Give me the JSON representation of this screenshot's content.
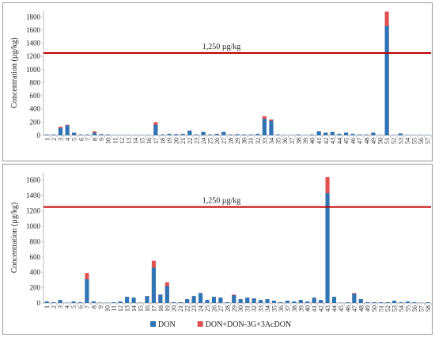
{
  "chart_data": [
    {
      "type": "bar",
      "y_label": "Concentration (µg/kg)",
      "categories": [
        "1",
        "2",
        "3",
        "4",
        "5",
        "6",
        "7",
        "8",
        "9",
        "10",
        "11",
        "12",
        "13",
        "14",
        "15",
        "16",
        "17",
        "18",
        "19",
        "20",
        "21",
        "22",
        "23",
        "24",
        "25",
        "26",
        "27",
        "28",
        "29",
        "30",
        "31",
        "32",
        "33",
        "34",
        "35",
        "36",
        "37",
        "38",
        "39",
        "40",
        "41",
        "42",
        "43",
        "44",
        "45",
        "46",
        "47",
        "48",
        "49",
        "50",
        "51",
        "52",
        "53",
        "54",
        "55",
        "56",
        "57"
      ],
      "series": [
        {
          "color": "#2e75b6",
          "values": [
            10,
            10,
            110,
            150,
            40,
            10,
            10,
            40,
            15,
            10,
            5,
            5,
            5,
            5,
            5,
            5,
            160,
            10,
            20,
            15,
            20,
            70,
            10,
            50,
            10,
            20,
            50,
            10,
            15,
            10,
            10,
            20,
            250,
            220,
            10,
            5,
            5,
            10,
            5,
            10,
            60,
            40,
            50,
            20,
            40,
            20,
            10,
            10,
            40,
            5,
            1660,
            5,
            30,
            5,
            5,
            5,
            5
          ]
        },
        {
          "color": "#e05050",
          "values": [
            10,
            10,
            130,
            160,
            40,
            10,
            10,
            60,
            15,
            10,
            5,
            5,
            5,
            5,
            5,
            5,
            200,
            10,
            20,
            15,
            20,
            70,
            10,
            50,
            10,
            20,
            50,
            10,
            15,
            10,
            10,
            20,
            290,
            240,
            10,
            5,
            5,
            10,
            5,
            10,
            60,
            40,
            50,
            20,
            40,
            20,
            10,
            10,
            40,
            5,
            1880,
            5,
            30,
            5,
            5,
            5,
            5
          ]
        }
      ],
      "ylim": [
        0,
        1900
      ],
      "yticks": [
        0,
        200,
        400,
        600,
        800,
        1000,
        1200,
        1400,
        1600,
        1800
      ],
      "threshold": {
        "value": 1250,
        "label": "1,250 µg/kg",
        "color": "#c00000"
      }
    },
    {
      "type": "bar",
      "y_label": "Concentration (µg/kg)",
      "categories": [
        "1",
        "2",
        "3",
        "4",
        "5",
        "6",
        "7",
        "8",
        "9",
        "10",
        "11",
        "12",
        "13",
        "14",
        "15",
        "16",
        "17",
        "18",
        "19",
        "20",
        "21",
        "22",
        "23",
        "24",
        "25",
        "26",
        "27",
        "28",
        "29",
        "30",
        "31",
        "32",
        "33",
        "34",
        "35",
        "36",
        "37",
        "38",
        "39",
        "40",
        "41",
        "42",
        "43",
        "44",
        "45",
        "46",
        "47",
        "48",
        "49",
        "50",
        "51",
        "52",
        "53",
        "54",
        "55",
        "56",
        "57",
        "58"
      ],
      "series": [
        {
          "name": "DON",
          "color": "#2e75b6",
          "values": [
            20,
            10,
            40,
            5,
            20,
            10,
            310,
            20,
            5,
            5,
            10,
            20,
            80,
            70,
            5,
            90,
            460,
            110,
            220,
            10,
            10,
            50,
            90,
            130,
            40,
            80,
            70,
            10,
            100,
            50,
            70,
            60,
            40,
            50,
            30,
            10,
            30,
            20,
            40,
            20,
            70,
            40,
            1430,
            80,
            5,
            10,
            120,
            50,
            10,
            10,
            10,
            10,
            30,
            10,
            20,
            10,
            5,
            10
          ]
        },
        {
          "name": "DON+DON-3G+3AcDON",
          "color": "#e05050",
          "values": [
            20,
            10,
            40,
            5,
            20,
            10,
            390,
            20,
            5,
            5,
            10,
            20,
            80,
            70,
            5,
            90,
            550,
            110,
            270,
            10,
            10,
            50,
            90,
            130,
            40,
            80,
            70,
            10,
            110,
            50,
            70,
            60,
            40,
            50,
            30,
            10,
            30,
            20,
            40,
            20,
            70,
            40,
            1640,
            80,
            5,
            10,
            130,
            50,
            10,
            10,
            10,
            10,
            30,
            10,
            20,
            10,
            5,
            10
          ]
        }
      ],
      "ylim": [
        0,
        1700
      ],
      "yticks": [
        0,
        200,
        400,
        600,
        800,
        1000,
        1200,
        1400,
        1600
      ],
      "threshold": {
        "value": 1250,
        "label": "1,250 µg/kg",
        "color": "#c00000"
      },
      "legend": "bottom"
    }
  ]
}
